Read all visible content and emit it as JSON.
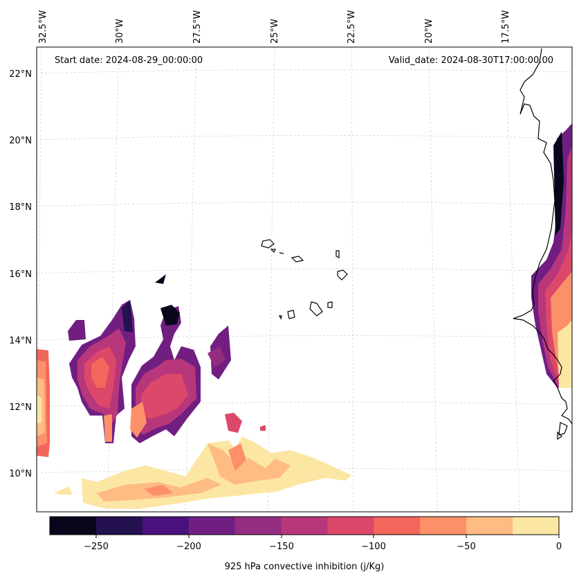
{
  "map": {
    "start_date_text": "Start date: 2024-08-29_00:00:00",
    "valid_date_text": "Valid_date: 2024-08-30T17:00:00.00",
    "lon_labels": [
      "32.5°W",
      "30°W",
      "27.5°W",
      "25°W",
      "22.5°W",
      "20°W",
      "17.5°W"
    ],
    "lat_labels": [
      "22°N",
      "20°N",
      "18°N",
      "16°N",
      "14°N",
      "12°N",
      "10°N"
    ],
    "gridlines": true
  },
  "colorbar": {
    "label": "925 hPa convective inhibition (j/Kg)",
    "tick_labels": [
      "−250",
      "−200",
      "−150",
      "−100",
      "−50",
      "0"
    ],
    "levels": [
      -275,
      -250,
      -225,
      -200,
      -175,
      -150,
      -125,
      -100,
      -75,
      -50,
      -25,
      0
    ],
    "colors": [
      "#07061b",
      "#231150",
      "#4b117c",
      "#701f81",
      "#942c80",
      "#b8377a",
      "#dc4869",
      "#f2665c",
      "#fd9068",
      "#febc82",
      "#fce6a4"
    ]
  }
}
